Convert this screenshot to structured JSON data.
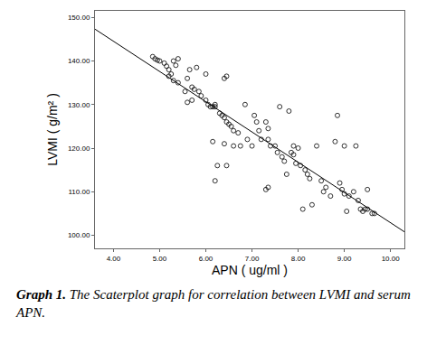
{
  "chart_data": {
    "type": "scatter",
    "title": "Graph 1. The Scaterplot graph for correlation between LVMI and serum APN.",
    "x_label": "APN ( ug/ml )",
    "y_label": "LVMI ( g/m² )",
    "xlim": [
      3.6,
      10.3
    ],
    "ylim": [
      97,
      151.5
    ],
    "xticks": [
      {
        "value": 4,
        "label": "4.00"
      },
      {
        "value": 5,
        "label": "5.00"
      },
      {
        "value": 6,
        "label": "6.00"
      },
      {
        "value": 7,
        "label": "7.00"
      },
      {
        "value": 8,
        "label": "8.00"
      },
      {
        "value": 9,
        "label": "9.00"
      },
      {
        "value": 10,
        "label": "10.00"
      }
    ],
    "yticks": [
      {
        "value": 100,
        "label": "100.00"
      },
      {
        "value": 110,
        "label": "110.00"
      },
      {
        "value": 120,
        "label": "120.00"
      },
      {
        "value": 130,
        "label": "130.00"
      },
      {
        "value": 140,
        "label": "140.00"
      },
      {
        "value": 150,
        "label": "150.00"
      }
    ],
    "grid": false,
    "series": [
      {
        "type": "scatter",
        "marker": "open circle",
        "color": "#000000",
        "x": [
          4.85,
          4.9,
          4.95,
          5.0,
          5.1,
          5.15,
          5.2,
          5.25,
          5.3,
          5.35,
          5.4,
          5.3,
          5.2,
          5.4,
          5.55,
          5.6,
          5.65,
          5.7,
          5.75,
          5.8,
          5.85,
          5.9,
          5.6,
          5.7,
          6.0,
          6.0,
          6.05,
          6.1,
          6.15,
          6.2,
          6.2,
          6.3,
          6.35,
          6.4,
          6.45,
          6.4,
          6.45,
          6.5,
          6.55,
          6.6,
          6.7,
          6.15,
          6.25,
          6.2,
          6.45,
          6.4,
          6.6,
          6.75,
          6.85,
          6.9,
          7.05,
          7.1,
          7.15,
          7.3,
          7.35,
          7.0,
          7.2,
          7.35,
          7.4,
          7.5,
          7.3,
          7.35,
          7.55,
          7.6,
          7.65,
          7.7,
          7.8,
          7.75,
          7.85,
          7.9,
          7.9,
          7.95,
          8.0,
          8.05,
          8.15,
          8.2,
          8.25,
          8.1,
          8.3,
          8.4,
          8.5,
          8.6,
          8.7,
          8.85,
          8.8,
          8.9,
          8.95,
          9.0,
          9.05,
          9.1,
          9.2,
          9.25,
          9.3,
          9.35,
          9.4,
          9.45,
          9.5,
          9.5,
          9.6,
          9.65,
          8.55,
          9.0
        ],
        "values": [
          141,
          140.5,
          140.2,
          140,
          139.5,
          138.8,
          138,
          137,
          140,
          139,
          140.5,
          135.5,
          136.5,
          135,
          133,
          136,
          138,
          134,
          133.5,
          138.5,
          133,
          132,
          130.5,
          131,
          131,
          137,
          130,
          129.5,
          129.5,
          129.5,
          130,
          128,
          127.5,
          136,
          136.5,
          127,
          126,
          125.5,
          125,
          124,
          123.5,
          121.5,
          116,
          112.5,
          116,
          121,
          120.5,
          120.5,
          130,
          122,
          127.5,
          126,
          124,
          126,
          124.5,
          120.5,
          122,
          122,
          120.5,
          120.5,
          110.5,
          111,
          119,
          129.5,
          118,
          117,
          128.5,
          114,
          119,
          120.5,
          118.5,
          116.5,
          120,
          116,
          115,
          114,
          113,
          106,
          107,
          120.5,
          112.5,
          111,
          109,
          127.5,
          121.5,
          112,
          110.5,
          109.5,
          105.5,
          109,
          110,
          120.5,
          108,
          106,
          105.5,
          106,
          106,
          110.5,
          105,
          105,
          110,
          120.5
        ]
      },
      {
        "type": "line",
        "line_style": "solid",
        "color": "#000000",
        "x": [
          3.6,
          10.3
        ],
        "values": [
          147.3,
          100.8
        ]
      }
    ]
  }
}
